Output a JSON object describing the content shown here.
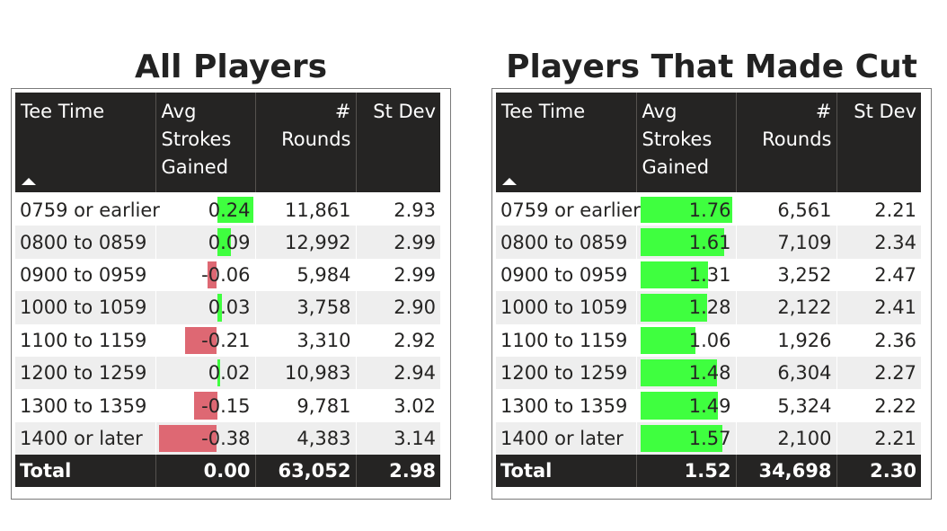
{
  "colors": {
    "positive": "#3fff3f",
    "negative": "#de6873",
    "header_bg": "#252423"
  },
  "icons": {
    "sort": "sort-ascending-icon"
  },
  "tables": [
    {
      "title": "All Players",
      "columns": [
        "Tee Time",
        "Avg Strokes Gained",
        "# Rounds",
        "St Dev"
      ],
      "rows": [
        {
          "tee_time": "0759 or earlier",
          "avg_sg": "0.24",
          "rounds": "11,861",
          "st_dev": "2.93",
          "value": 0.24
        },
        {
          "tee_time": "0800 to 0859",
          "avg_sg": "0.09",
          "rounds": "12,992",
          "st_dev": "2.99",
          "value": 0.09
        },
        {
          "tee_time": "0900 to 0959",
          "avg_sg": "-0.06",
          "rounds": "5,984",
          "st_dev": "2.99",
          "value": -0.06
        },
        {
          "tee_time": "1000 to 1059",
          "avg_sg": "0.03",
          "rounds": "3,758",
          "st_dev": "2.90",
          "value": 0.03
        },
        {
          "tee_time": "1100 to 1159",
          "avg_sg": "-0.21",
          "rounds": "3,310",
          "st_dev": "2.92",
          "value": -0.21
        },
        {
          "tee_time": "1200 to 1259",
          "avg_sg": "0.02",
          "rounds": "10,983",
          "st_dev": "2.94",
          "value": 0.02
        },
        {
          "tee_time": "1300 to 1359",
          "avg_sg": "-0.15",
          "rounds": "9,781",
          "st_dev": "3.02",
          "value": -0.15
        },
        {
          "tee_time": "1400 or later",
          "avg_sg": "-0.38",
          "rounds": "4,383",
          "st_dev": "3.14",
          "value": -0.38
        }
      ],
      "total": {
        "label": "Total",
        "avg_sg": "0.00",
        "rounds": "63,052",
        "st_dev": "2.98"
      }
    },
    {
      "title": "Players That Made Cut",
      "columns": [
        "Tee Time",
        "Avg Strokes Gained",
        "# Rounds",
        "St Dev"
      ],
      "rows": [
        {
          "tee_time": "0759 or earlier",
          "avg_sg": "1.76",
          "rounds": "6,561",
          "st_dev": "2.21",
          "value": 1.76
        },
        {
          "tee_time": "0800 to 0859",
          "avg_sg": "1.61",
          "rounds": "7,109",
          "st_dev": "2.34",
          "value": 1.61
        },
        {
          "tee_time": "0900 to 0959",
          "avg_sg": "1.31",
          "rounds": "3,252",
          "st_dev": "2.47",
          "value": 1.31
        },
        {
          "tee_time": "1000 to 1059",
          "avg_sg": "1.28",
          "rounds": "2,122",
          "st_dev": "2.41",
          "value": 1.28
        },
        {
          "tee_time": "1100 to 1159",
          "avg_sg": "1.06",
          "rounds": "1,926",
          "st_dev": "2.36",
          "value": 1.06
        },
        {
          "tee_time": "1200 to 1259",
          "avg_sg": "1.48",
          "rounds": "6,304",
          "st_dev": "2.27",
          "value": 1.48
        },
        {
          "tee_time": "1300 to 1359",
          "avg_sg": "1.49",
          "rounds": "5,324",
          "st_dev": "2.22",
          "value": 1.49
        },
        {
          "tee_time": "1400 or later",
          "avg_sg": "1.57",
          "rounds": "2,100",
          "st_dev": "2.21",
          "value": 1.57
        }
      ],
      "total": {
        "label": "Total",
        "avg_sg": "1.52",
        "rounds": "34,698",
        "st_dev": "2.30"
      }
    }
  ]
}
